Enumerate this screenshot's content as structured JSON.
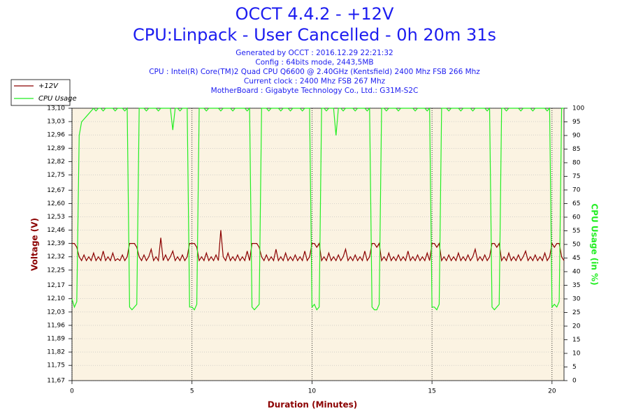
{
  "chart_data": {
    "type": "line",
    "title": "OCCT 4.4.2 - +12V",
    "subtitle": "CPU:Linpack - User Cancelled - 0h 20m 31s",
    "info": [
      "Generated by OCCT : 2016.12.29 22:21:32",
      "Config : 64bits mode, 2443,5MB",
      "CPU : Intel(R) Core(TM)2 Quad CPU Q6600 @ 2.40GHz (Kentsfield) 2400 Mhz FSB 266 Mhz",
      "Current clock : 2400 Mhz FSB 267 Mhz",
      "MotherBoard : Gigabyte Technology Co., Ltd.: G31M-S2C"
    ],
    "xlabel": "Duration (Minutes)",
    "ylabel": "Voltage (V)",
    "y2label": "CPU Usage (in %)",
    "xlim": [
      0,
      20.5
    ],
    "xticks": [
      0,
      5,
      10,
      15,
      20
    ],
    "ylim": [
      11.67,
      13.1
    ],
    "yticks": [
      {
        "value": 11.67,
        "label": "11,67"
      },
      {
        "value": 11.75,
        "label": "11,75"
      },
      {
        "value": 11.82,
        "label": "11,82"
      },
      {
        "value": 11.89,
        "label": "11,89"
      },
      {
        "value": 11.96,
        "label": "11,96"
      },
      {
        "value": 12.03,
        "label": "12,03"
      },
      {
        "value": 12.1,
        "label": "12,10"
      },
      {
        "value": 12.17,
        "label": "12,17"
      },
      {
        "value": 12.25,
        "label": "12,25"
      },
      {
        "value": 12.32,
        "label": "12,32"
      },
      {
        "value": 12.39,
        "label": "12,39"
      },
      {
        "value": 12.46,
        "label": "12,46"
      },
      {
        "value": 12.53,
        "label": "12,53"
      },
      {
        "value": 12.6,
        "label": "12,60"
      },
      {
        "value": 12.67,
        "label": "12,67"
      },
      {
        "value": 12.75,
        "label": "12,75"
      },
      {
        "value": 12.82,
        "label": "12,82"
      },
      {
        "value": 12.89,
        "label": "12,89"
      },
      {
        "value": 12.96,
        "label": "12,96"
      },
      {
        "value": 13.03,
        "label": "13,03"
      },
      {
        "value": 13.1,
        "label": "13,10"
      }
    ],
    "y2lim": [
      0,
      100
    ],
    "y2ticks": [
      0,
      5,
      10,
      15,
      20,
      25,
      30,
      35,
      40,
      45,
      50,
      55,
      60,
      65,
      70,
      75,
      80,
      85,
      90,
      95,
      100
    ],
    "grid": true,
    "x": [
      0,
      0.1,
      0.2,
      0.3,
      0.4,
      0.5,
      0.6,
      0.7,
      0.8,
      0.9,
      1,
      1.1,
      1.2,
      1.3,
      1.4,
      1.5,
      1.6,
      1.7,
      1.8,
      1.9,
      2,
      2.1,
      2.2,
      2.3,
      2.4,
      2.5,
      2.6,
      2.7,
      2.8,
      2.9,
      3,
      3.1,
      3.2,
      3.3,
      3.4,
      3.5,
      3.6,
      3.7,
      3.8,
      3.9,
      4,
      4.1,
      4.2,
      4.3,
      4.4,
      4.5,
      4.6,
      4.7,
      4.8,
      4.9,
      5,
      5.1,
      5.2,
      5.3,
      5.4,
      5.5,
      5.6,
      5.7,
      5.8,
      5.9,
      6,
      6.1,
      6.2,
      6.3,
      6.4,
      6.5,
      6.6,
      6.7,
      6.8,
      6.9,
      7,
      7.1,
      7.2,
      7.3,
      7.4,
      7.5,
      7.6,
      7.7,
      7.8,
      7.9,
      8,
      8.1,
      8.2,
      8.3,
      8.4,
      8.5,
      8.6,
      8.7,
      8.8,
      8.9,
      9,
      9.1,
      9.2,
      9.3,
      9.4,
      9.5,
      9.6,
      9.7,
      9.8,
      9.9,
      10,
      10.1,
      10.2,
      10.3,
      10.4,
      10.5,
      10.6,
      10.7,
      10.8,
      10.9,
      11,
      11.1,
      11.2,
      11.3,
      11.4,
      11.5,
      11.6,
      11.7,
      11.8,
      11.9,
      12,
      12.1,
      12.2,
      12.3,
      12.4,
      12.5,
      12.6,
      12.7,
      12.8,
      12.9,
      13,
      13.1,
      13.2,
      13.3,
      13.4,
      13.5,
      13.6,
      13.7,
      13.8,
      13.9,
      14,
      14.1,
      14.2,
      14.3,
      14.4,
      14.5,
      14.6,
      14.7,
      14.8,
      14.9,
      15,
      15.1,
      15.2,
      15.3,
      15.4,
      15.5,
      15.6,
      15.7,
      15.8,
      15.9,
      16,
      16.1,
      16.2,
      16.3,
      16.4,
      16.5,
      16.6,
      16.7,
      16.8,
      16.9,
      17,
      17.1,
      17.2,
      17.3,
      17.4,
      17.5,
      17.6,
      17.7,
      17.8,
      17.9,
      18,
      18.1,
      18.2,
      18.3,
      18.4,
      18.5,
      18.6,
      18.7,
      18.8,
      18.9,
      19,
      19.1,
      19.2,
      19.3,
      19.4,
      19.5,
      19.6,
      19.7,
      19.8,
      19.9,
      20,
      20.1,
      20.2,
      20.3,
      20.4,
      20.5
    ],
    "series": [
      {
        "name": "+12V",
        "color": "#8b0000",
        "values": [
          12.39,
          12.39,
          12.37,
          12.32,
          12.3,
          12.33,
          12.3,
          12.32,
          12.3,
          12.34,
          12.3,
          12.32,
          12.3,
          12.35,
          12.3,
          12.32,
          12.3,
          12.34,
          12.3,
          12.31,
          12.3,
          12.33,
          12.3,
          12.32,
          12.39,
          12.39,
          12.39,
          12.37,
          12.32,
          12.3,
          12.33,
          12.3,
          12.32,
          12.36,
          12.3,
          12.32,
          12.3,
          12.42,
          12.3,
          12.33,
          12.3,
          12.32,
          12.35,
          12.3,
          12.32,
          12.3,
          12.33,
          12.3,
          12.32,
          12.39,
          12.39,
          12.39,
          12.37,
          12.3,
          12.32,
          12.3,
          12.34,
          12.3,
          12.32,
          12.3,
          12.33,
          12.3,
          12.46,
          12.32,
          12.3,
          12.34,
          12.3,
          12.32,
          12.3,
          12.33,
          12.3,
          12.32,
          12.3,
          12.35,
          12.3,
          12.39,
          12.39,
          12.39,
          12.37,
          12.32,
          12.3,
          12.33,
          12.3,
          12.32,
          12.3,
          12.36,
          12.3,
          12.32,
          12.3,
          12.34,
          12.3,
          12.32,
          12.3,
          12.33,
          12.3,
          12.32,
          12.3,
          12.35,
          12.3,
          12.32,
          12.39,
          12.39,
          12.37,
          12.39,
          12.3,
          12.32,
          12.3,
          12.34,
          12.3,
          12.32,
          12.3,
          12.33,
          12.3,
          12.32,
          12.36,
          12.3,
          12.32,
          12.3,
          12.33,
          12.3,
          12.32,
          12.3,
          12.35,
          12.3,
          12.32,
          12.39,
          12.39,
          12.37,
          12.39,
          12.3,
          12.32,
          12.3,
          12.34,
          12.3,
          12.32,
          12.3,
          12.33,
          12.3,
          12.32,
          12.3,
          12.35,
          12.3,
          12.32,
          12.3,
          12.33,
          12.3,
          12.32,
          12.3,
          12.34,
          12.3,
          12.39,
          12.39,
          12.37,
          12.39,
          12.3,
          12.32,
          12.3,
          12.33,
          12.3,
          12.32,
          12.3,
          12.34,
          12.3,
          12.32,
          12.3,
          12.33,
          12.3,
          12.32,
          12.36,
          12.3,
          12.32,
          12.3,
          12.33,
          12.3,
          12.32,
          12.39,
          12.39,
          12.37,
          12.39,
          12.3,
          12.32,
          12.3,
          12.34,
          12.3,
          12.32,
          12.3,
          12.33,
          12.3,
          12.32,
          12.35,
          12.3,
          12.32,
          12.3,
          12.33,
          12.3,
          12.32,
          12.3,
          12.34,
          12.3,
          12.32,
          12.39,
          12.37,
          12.39,
          12.39,
          12.32,
          12.3
        ]
      },
      {
        "name": "CPU Usage",
        "color": "#22ee22",
        "axis": "y2",
        "values": [
          30,
          27,
          29,
          90,
          95,
          96,
          97,
          98,
          99,
          100,
          99,
          100,
          100,
          99,
          100,
          100,
          100,
          100,
          99,
          100,
          100,
          100,
          99,
          100,
          27,
          26,
          27,
          28,
          100,
          100,
          100,
          99,
          100,
          100,
          100,
          100,
          99,
          100,
          100,
          100,
          100,
          100,
          92,
          100,
          100,
          99,
          100,
          100,
          100,
          27,
          27,
          26,
          28,
          100,
          100,
          100,
          99,
          100,
          100,
          100,
          100,
          100,
          99,
          100,
          100,
          100,
          100,
          99,
          100,
          100,
          100,
          100,
          100,
          99,
          100,
          27,
          26,
          27,
          28,
          100,
          100,
          100,
          99,
          100,
          100,
          100,
          100,
          99,
          100,
          100,
          100,
          99,
          100,
          100,
          100,
          100,
          99,
          100,
          100,
          100,
          27,
          28,
          26,
          27,
          100,
          100,
          99,
          100,
          100,
          100,
          90,
          100,
          100,
          99,
          100,
          100,
          100,
          100,
          99,
          100,
          100,
          100,
          100,
          99,
          100,
          27,
          26,
          26,
          28,
          100,
          100,
          99,
          100,
          100,
          100,
          100,
          99,
          100,
          100,
          100,
          100,
          100,
          100,
          99,
          100,
          100,
          100,
          100,
          99,
          100,
          27,
          27,
          26,
          28,
          100,
          100,
          100,
          99,
          100,
          100,
          100,
          100,
          99,
          100,
          100,
          100,
          100,
          99,
          100,
          100,
          100,
          100,
          100,
          99,
          100,
          27,
          26,
          27,
          28,
          100,
          100,
          99,
          100,
          100,
          100,
          100,
          100,
          99,
          100,
          100,
          100,
          100,
          99,
          100,
          100,
          100,
          100,
          100,
          99,
          100,
          27,
          28,
          27,
          29,
          100,
          100
        ]
      }
    ]
  }
}
